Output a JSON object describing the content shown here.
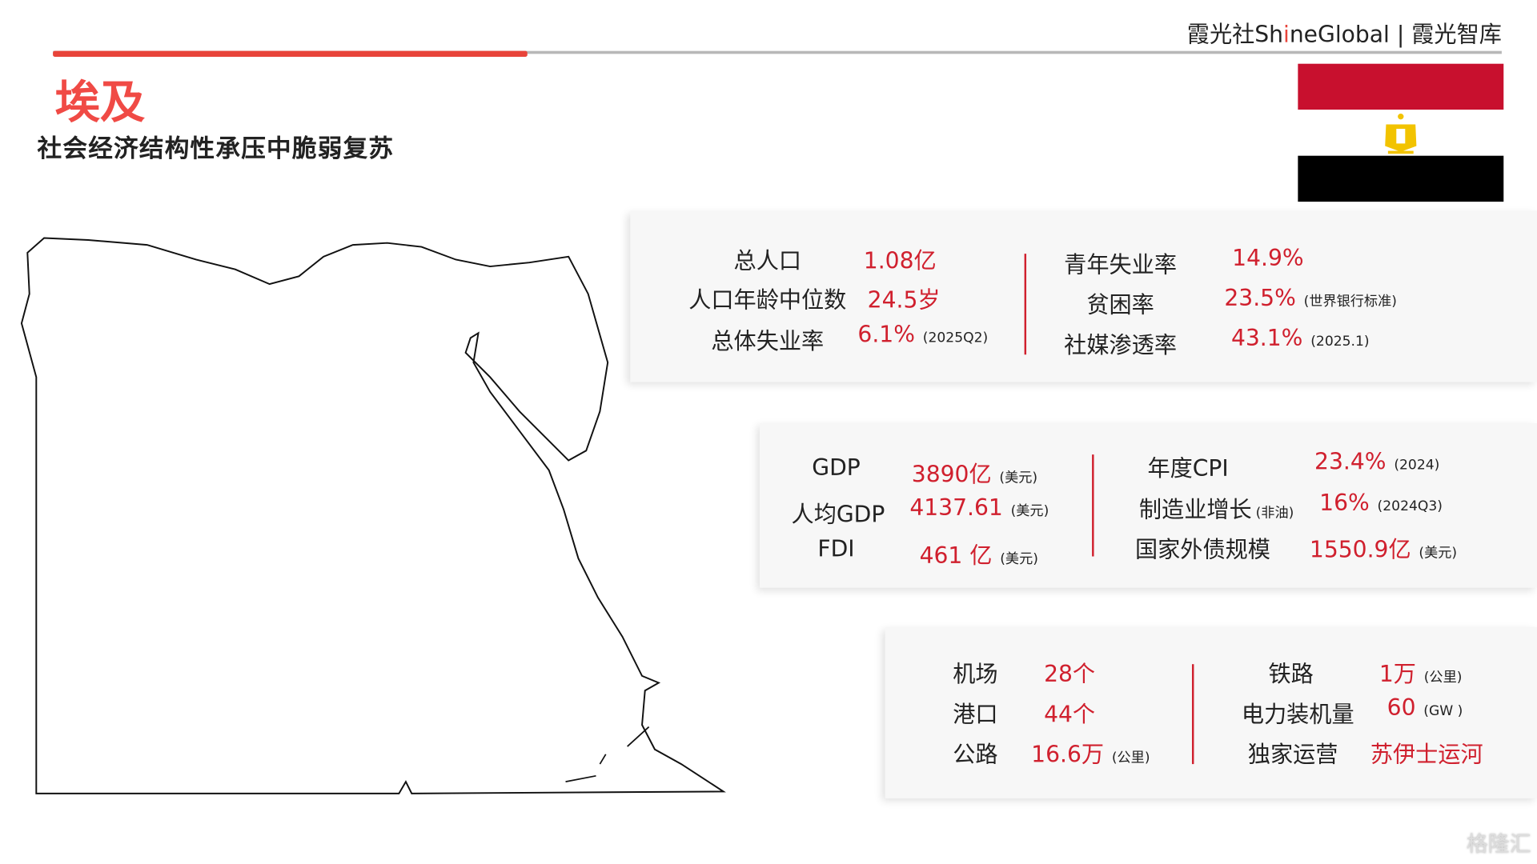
{
  "header": {
    "brand_cn": "霞光社",
    "brand_en_pre": "Sh",
    "brand_en_hi": "i",
    "brand_en_post": "neGlobal",
    "separator": "|",
    "brand_right": "霞光智库"
  },
  "title": "埃及",
  "subtitle": "社会经济结构性承压中脆弱复苏",
  "flag": {
    "colors": [
      "#c8102e",
      "#ffffff",
      "#000000"
    ],
    "emblem": "eagle-of-saladin",
    "emblem_color": "#f2c300"
  },
  "panel1": {
    "left": [
      {
        "label": "总人口",
        "value": "1.08亿",
        "note": ""
      },
      {
        "label": "人口年龄中位数",
        "value": "24.5岁",
        "note": ""
      },
      {
        "label": "总体失业率",
        "value": "6.1%",
        "note": "(2025Q2)"
      }
    ],
    "right": [
      {
        "label": "青年失业率",
        "value": "14.9%",
        "note": ""
      },
      {
        "label": "贫困率",
        "value": "23.5%",
        "note": "(世界银行标准)"
      },
      {
        "label": "社媒渗透率",
        "value": "43.1%",
        "note": "(2025.1)"
      }
    ]
  },
  "panel2": {
    "left": [
      {
        "label": "GDP",
        "value": "3890亿",
        "note": "(美元)"
      },
      {
        "label": "人均GDP",
        "value": "4137.61",
        "note": "(美元)"
      },
      {
        "label": "FDI",
        "value": "461 亿",
        "note": "(美元)"
      }
    ],
    "right": [
      {
        "label": "年度CPI",
        "value": "23.4%",
        "note": "(2024)"
      },
      {
        "label": "制造业增长",
        "label_note": "(非油)",
        "value": "16%",
        "note": "(2024Q3)"
      },
      {
        "label": "国家外债规模",
        "value": "1550.9亿",
        "note": "(美元)"
      }
    ]
  },
  "panel3": {
    "left": [
      {
        "label": "机场",
        "value": "28个",
        "note": ""
      },
      {
        "label": "港口",
        "value": "44个",
        "note": ""
      },
      {
        "label": "公路",
        "value": "16.6万",
        "note": "(公里)"
      }
    ],
    "right": [
      {
        "label": "铁路",
        "value": "1万",
        "note": "(公里)"
      },
      {
        "label": "电力装机量",
        "value": "60",
        "note": "(GW )"
      },
      {
        "label": "独家运营",
        "value": "苏伊士运河",
        "note": ""
      }
    ]
  },
  "watermark": "格隆汇",
  "accent": "#d0202e"
}
